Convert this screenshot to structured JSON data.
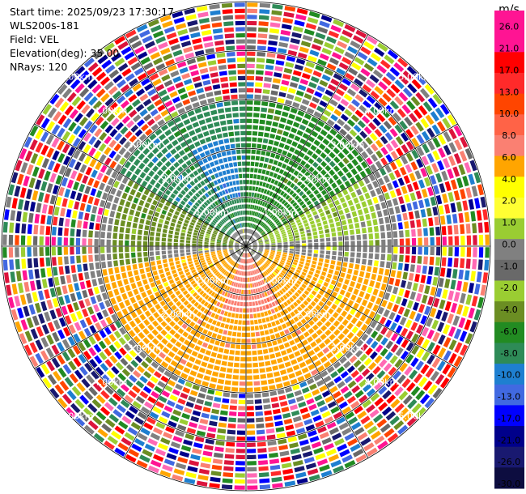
{
  "header": {
    "start_time": "Start time: 2025/09/23 17:30:17",
    "instrument": "WLS200s-181",
    "field": "Field: VEL",
    "elevation": "Elevation(deg): 35.00",
    "nrays": "NRays: 120"
  },
  "colorbar": {
    "unit": "m/s",
    "labels": [
      "26.0",
      "21.0",
      "17.0",
      "13.0",
      "10.0",
      "8.0",
      "6.0",
      "4.0",
      "2.0",
      "1.0",
      "0.0",
      "-1.0",
      "-2.0",
      "-4.0",
      "-6.0",
      "-8.0",
      "-10.0",
      "-13.0",
      "-17.0",
      "-21.0",
      "-26.0",
      "-30.0"
    ],
    "colors": [
      "#ff1493",
      "#ff1493",
      "#ff0000",
      "#ff2a2a",
      "#ff4500",
      "#ff6347",
      "#fa8072",
      "#ffa500",
      "#ffff00",
      "#ffff33",
      "#9acd32",
      "#808080",
      "#696969",
      "#9acd32",
      "#6b8e23",
      "#228b22",
      "#2e8b57",
      "#1e7fd0",
      "#4169e1",
      "#0000ff",
      "#00008b",
      "#191970",
      "#0d0d40"
    ]
  },
  "chart_data": {
    "type": "heatmap",
    "title": "",
    "xlabel": "",
    "ylabel": "",
    "range_rings_km": [
      "1.00km",
      "2.00km",
      "3.00km",
      "4.00km",
      "5.00km"
    ],
    "max_range_km": 5.0,
    "nrays": 120,
    "elevation_deg": 35.0,
    "field": "VEL",
    "unit": "m/s",
    "value_range": [
      -30.0,
      30.0
    ],
    "valid_data_range_km": 3.0,
    "sectors": [
      {
        "azimuth_deg": [
          300,
          360
        ],
        "range_km": [
          0.4,
          3.0
        ],
        "value": -8.0
      },
      {
        "azimuth_deg": [
          330,
          355
        ],
        "range_km": [
          1.0,
          2.3
        ],
        "value": -10.0
      },
      {
        "azimuth_deg": [
          0,
          60
        ],
        "range_km": [
          0.4,
          3.0
        ],
        "value": -6.0
      },
      {
        "azimuth_deg": [
          60,
          90
        ],
        "range_km": [
          0.3,
          2.8
        ],
        "value": -2.0
      },
      {
        "azimuth_deg": [
          85,
          100
        ],
        "range_km": [
          0.3,
          2.5
        ],
        "value": 0.0
      },
      {
        "azimuth_deg": [
          260,
          300
        ],
        "range_km": [
          0.3,
          2.8
        ],
        "value": -4.0
      },
      {
        "azimuth_deg": [
          240,
          270
        ],
        "range_km": [
          0.3,
          2.0
        ],
        "value": 0.0
      },
      {
        "azimuth_deg": [
          100,
          260
        ],
        "range_km": [
          0.4,
          3.0
        ],
        "value": 4.0
      },
      {
        "azimuth_deg": [
          140,
          220
        ],
        "range_km": [
          0.6,
          3.0
        ],
        "value": 6.0
      },
      {
        "azimuth_deg": [
          150,
          200
        ],
        "range_km": [
          0.1,
          1.4
        ],
        "value": 8.0
      }
    ]
  }
}
